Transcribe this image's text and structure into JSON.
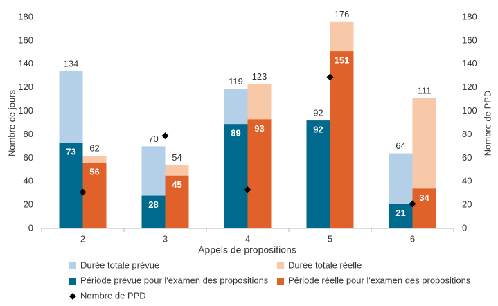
{
  "chart_data": {
    "type": "bar",
    "x_label": "Appels de propositions",
    "y_label": "Nombre de jours",
    "y2_label": "Nombre de PPD",
    "categories": [
      "2",
      "3",
      "4",
      "5",
      "6"
    ],
    "series": [
      {
        "name": "Durée totale prévue",
        "color": "#b4d0e8",
        "values": [
          134,
          70,
          119,
          92,
          64
        ]
      },
      {
        "name": "Durée totale réelle",
        "color": "#f8c9a9",
        "values": [
          62,
          54,
          123,
          176,
          111
        ]
      },
      {
        "name": "Période prévue pour l'examen des propositions",
        "color": "#006a8e",
        "values": [
          73,
          28,
          89,
          92,
          21
        ]
      },
      {
        "name": "Période réelle pour l'examen des propositions",
        "color": "#e0622a",
        "values": [
          56,
          45,
          93,
          151,
          34
        ]
      },
      {
        "name": "Nombre de PPD",
        "color": "#000000",
        "type": "scatter",
        "marker": "diamond",
        "axis": "y2",
        "values": [
          31,
          79,
          33,
          129,
          21
        ]
      }
    ],
    "ylim": [
      0,
      180
    ],
    "yticks": [
      0,
      20,
      40,
      60,
      80,
      100,
      120,
      140,
      160,
      180
    ],
    "y2lim": [
      0,
      180
    ],
    "y2ticks": [
      0,
      20,
      40,
      60,
      80,
      100,
      120,
      140,
      160,
      180
    ],
    "grid": false
  }
}
